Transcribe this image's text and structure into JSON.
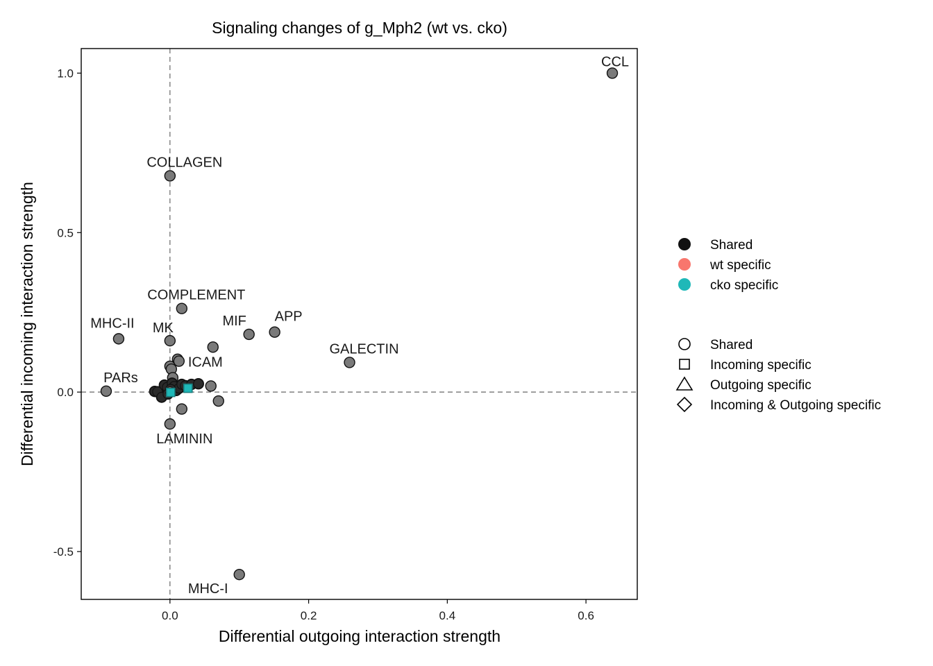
{
  "chart_data": {
    "type": "scatter",
    "title": "Signaling changes of g_Mph2 (wt vs. cko)",
    "xlabel": "Differential outgoing interaction strength",
    "ylabel": "Differential incoming interaction strength",
    "xlim": [
      -0.128,
      0.674
    ],
    "ylim": [
      -0.65,
      1.077
    ],
    "xticks": [
      0.0,
      0.2,
      0.4,
      0.6
    ],
    "xtick_labels": [
      "0.0",
      "0.2",
      "0.4",
      "0.6"
    ],
    "yticks": [
      -0.5,
      0.0,
      0.5,
      1.0
    ],
    "ytick_labels": [
      "-0.5",
      "0.0",
      "0.5",
      "1.0"
    ],
    "reference_lines": {
      "x": 0,
      "y": 0,
      "style": "dashed"
    },
    "grid": false,
    "legend_placement": "right",
    "colors": {
      "shared": "#111111",
      "wt_specific": "#F8766D",
      "cko_specific": "#1FB8B8",
      "point_fill": "#7a7a7a"
    },
    "points": [
      {
        "label": "CCL",
        "x": 0.638,
        "y": 1.0
      },
      {
        "label": "COLLAGEN",
        "x": 0.0,
        "y": 0.678
      },
      {
        "label": "COMPLEMENT",
        "x": 0.017,
        "y": 0.262
      },
      {
        "label": "MHC-II",
        "x": -0.074,
        "y": 0.167
      },
      {
        "label": "MK",
        "x": 0.0,
        "y": 0.161
      },
      {
        "label": "MIF",
        "x": 0.114,
        "y": 0.181
      },
      {
        "label": "APP",
        "x": 0.151,
        "y": 0.188
      },
      {
        "label": "GALECTIN",
        "x": 0.259,
        "y": 0.093
      },
      {
        "label": "ICAM",
        "x": 0.013,
        "y": 0.097
      },
      {
        "label": "PARs",
        "x": -0.092,
        "y": 0.003
      },
      {
        "label": "LAMININ",
        "x": 0.0,
        "y": -0.1
      },
      {
        "label": "MHC-I",
        "x": 0.1,
        "y": -0.572
      },
      {
        "label": "",
        "x": 0.062,
        "y": 0.141
      },
      {
        "label": "",
        "x": 0.0,
        "y": 0.081
      },
      {
        "label": "",
        "x": 0.002,
        "y": 0.072
      },
      {
        "label": "",
        "x": 0.004,
        "y": 0.045
      },
      {
        "label": "",
        "x": 0.011,
        "y": 0.103
      },
      {
        "label": "",
        "x": -0.022,
        "y": 0.002
      },
      {
        "label": "",
        "x": -0.018,
        "y": 0.001
      },
      {
        "label": "",
        "x": -0.008,
        "y": 0.022
      },
      {
        "label": "",
        "x": -0.004,
        "y": 0.015
      },
      {
        "label": "",
        "x": 0.003,
        "y": 0.028
      },
      {
        "label": "",
        "x": 0.006,
        "y": 0.018
      },
      {
        "label": "",
        "x": 0.009,
        "y": 0.005
      },
      {
        "label": "",
        "x": 0.013,
        "y": 0.012
      },
      {
        "label": "",
        "x": 0.017,
        "y": 0.024
      },
      {
        "label": "",
        "x": 0.022,
        "y": 0.02
      },
      {
        "label": "",
        "x": 0.031,
        "y": 0.024
      },
      {
        "label": "",
        "x": 0.041,
        "y": 0.026
      },
      {
        "label": "",
        "x": 0.059,
        "y": 0.019
      },
      {
        "label": "",
        "x": 0.07,
        "y": -0.028
      },
      {
        "label": "",
        "x": 0.017,
        "y": -0.053
      },
      {
        "label": "",
        "x": -0.012,
        "y": -0.016
      },
      {
        "label": "",
        "x": -0.003,
        "y": -0.006
      },
      {
        "label": "",
        "x": 0.001,
        "y": 0.009
      }
    ],
    "wt_specific_points": [
      {
        "x": 0.0,
        "y": 0.002,
        "shape": "circle"
      }
    ],
    "cko_specific_points": [
      {
        "x": 0.001,
        "y": -0.001,
        "shape": "square"
      },
      {
        "x": 0.026,
        "y": 0.012,
        "shape": "square"
      }
    ],
    "legend": {
      "color": [
        {
          "label": "Shared",
          "color": "#111111"
        },
        {
          "label": "wt specific",
          "color": "#F8766D"
        },
        {
          "label": "cko specific",
          "color": "#1FB8B8"
        }
      ],
      "shape": [
        {
          "label": "Shared",
          "shape": "circle"
        },
        {
          "label": "Incoming specific",
          "shape": "square"
        },
        {
          "label": "Outgoing specific",
          "shape": "triangle"
        },
        {
          "label": "Incoming & Outgoing specific",
          "shape": "diamond"
        }
      ]
    }
  }
}
